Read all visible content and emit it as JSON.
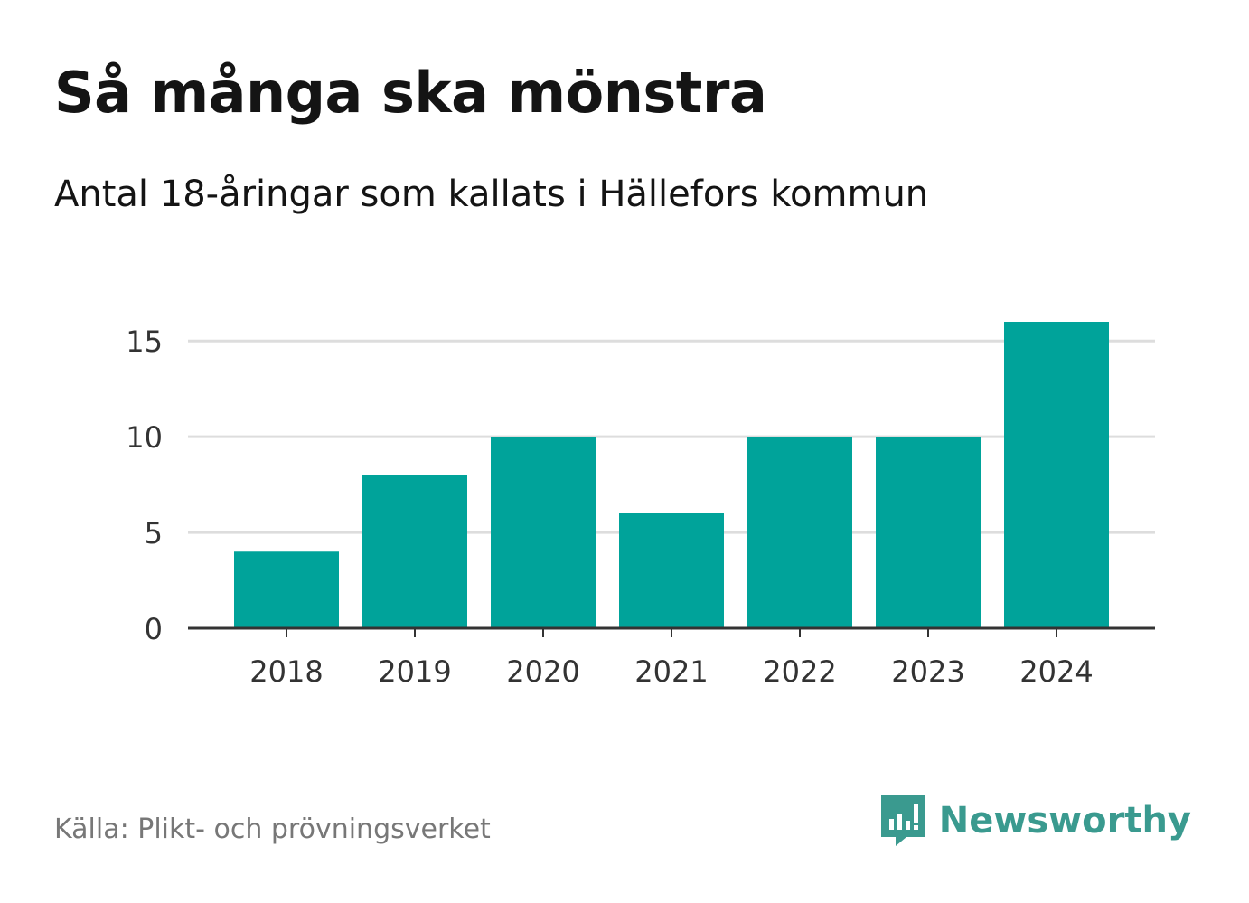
{
  "chart_data": {
    "type": "bar",
    "title": "Så många ska mönstra",
    "subtitle": "Antal 18-åringar som kallats i Hällefors kommun",
    "categories": [
      "2018",
      "2019",
      "2020",
      "2021",
      "2022",
      "2023",
      "2024"
    ],
    "values": [
      4,
      8,
      10,
      6,
      10,
      10,
      16
    ],
    "xlabel": "",
    "ylabel": "",
    "ylim": [
      0,
      16
    ],
    "yticks": [
      0,
      5,
      10,
      15
    ],
    "grid": true,
    "bar_color": "#00a39a",
    "grid_color": "#dddddd",
    "axis_color": "#333333"
  },
  "footer": {
    "source": "Källa: Plikt- och prövningsverket",
    "brand": "Newsworthy",
    "brand_icon": "newsworthy-logo-icon",
    "brand_color": "#3a9a8f"
  }
}
